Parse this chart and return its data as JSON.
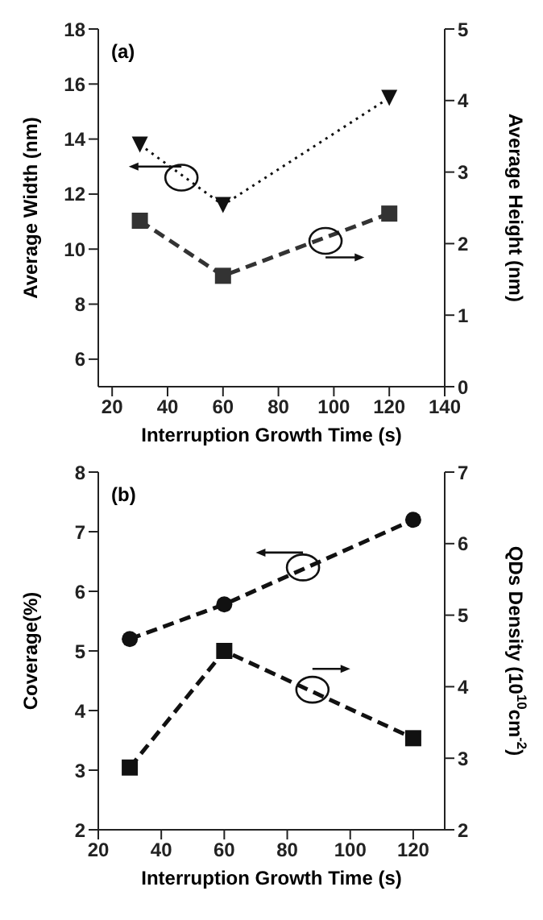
{
  "chart_data": [
    {
      "type": "line",
      "xlabel": "Interruption Growth Time (s)",
      "ylabel": "Average Width (nm)",
      "y2label": "Average Height (nm)",
      "x": [
        30,
        60,
        120
      ],
      "xlim": [
        15,
        140
      ],
      "xticks": [
        20,
        40,
        60,
        80,
        100,
        120,
        140
      ],
      "ylim": [
        5,
        18
      ],
      "yticks": [
        6,
        8,
        10,
        12,
        14,
        16,
        18
      ],
      "y2lim": [
        0,
        5
      ],
      "y2ticks": [
        0,
        1,
        2,
        3,
        4,
        5
      ],
      "annotations": [
        "(a)"
      ],
      "series": [
        {
          "color": "#111111",
          "values": [
            13.8,
            11.6,
            15.5
          ],
          "marker": "triangle",
          "line_style": "dotted"
        },
        {
          "color": "#333333",
          "values": [
            2.32,
            1.55,
            2.42
          ],
          "marker": "square",
          "line_style": "dashed",
          "axis": "y2"
        }
      ]
    },
    {
      "type": "line",
      "xlabel": "Interruption Growth Time (s)",
      "ylabel": "Coverage(%)",
      "y2label": "QDs Density (10$^{10}$cm$^{-2}$)",
      "x": [
        30,
        60,
        120
      ],
      "xlim": [
        20,
        130
      ],
      "xticks": [
        20,
        40,
        60,
        80,
        100,
        120
      ],
      "ylim": [
        2,
        8
      ],
      "yticks": [
        2,
        3,
        4,
        5,
        6,
        7,
        8
      ],
      "y2lim": [
        2,
        7
      ],
      "y2ticks": [
        2,
        3,
        4,
        5,
        6,
        7
      ],
      "annotations": [
        "(b)"
      ],
      "series": [
        {
          "color": "#111111",
          "values": [
            5.2,
            5.78,
            7.2
          ],
          "marker": "circle",
          "line_style": "dashed"
        },
        {
          "color": "#111111",
          "values": [
            2.87,
            4.5,
            3.28
          ],
          "marker": "square",
          "line_style": "dashed",
          "axis": "y2"
        }
      ]
    }
  ]
}
